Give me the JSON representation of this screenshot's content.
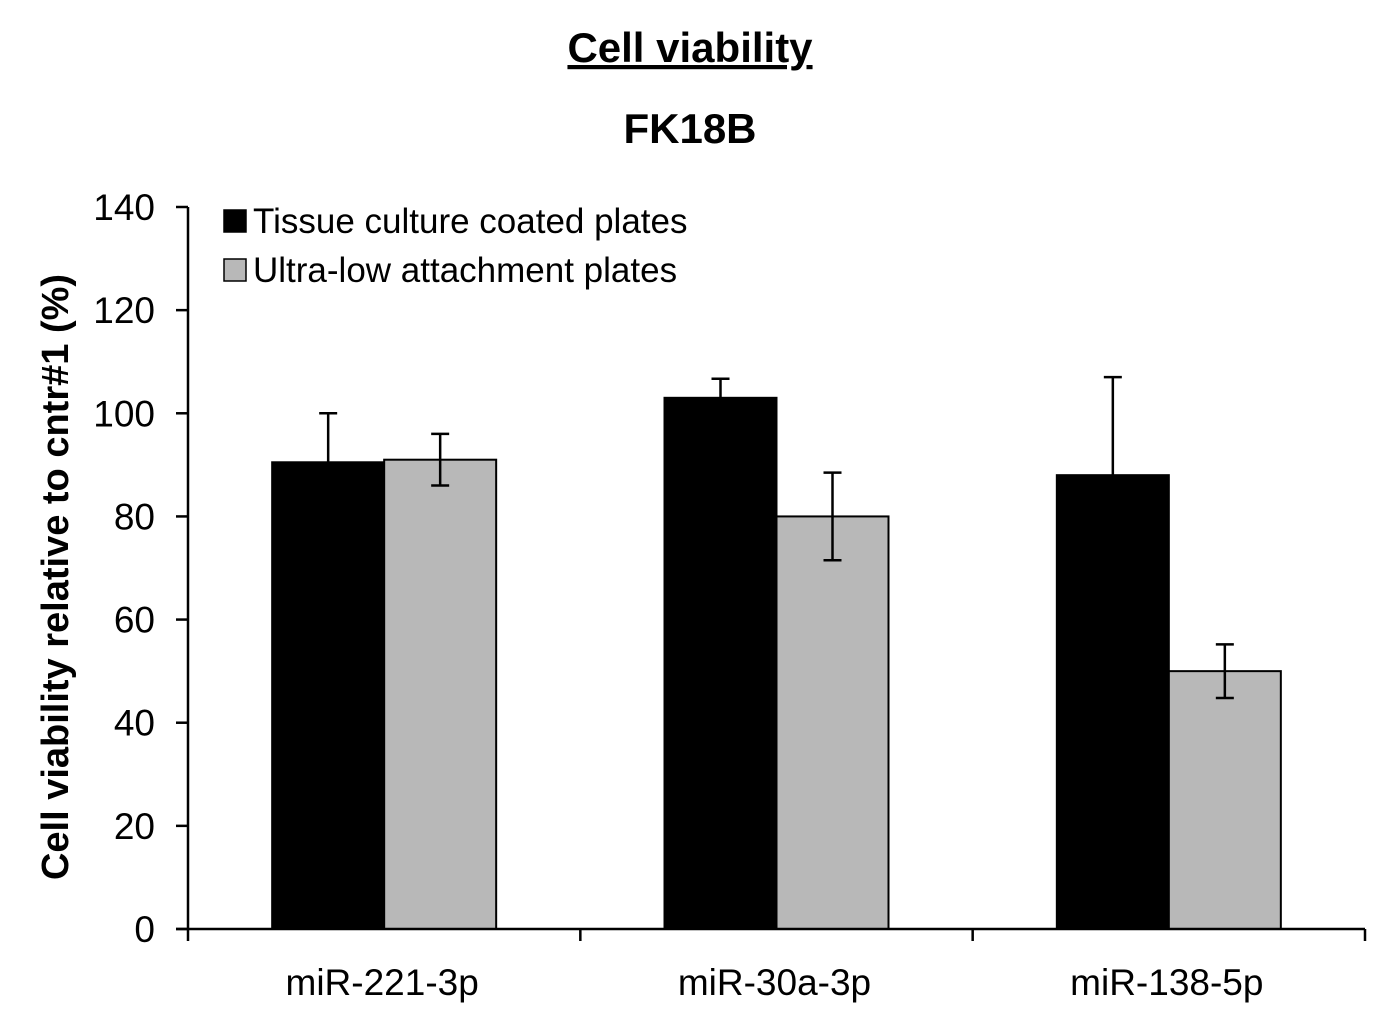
{
  "chart_data": {
    "type": "bar",
    "title": "Cell viability",
    "subtitle": "FK18B",
    "xlabel": "",
    "ylabel": "Cell viability relative to cntr#1 (%)",
    "ylim": [
      0,
      140
    ],
    "yticks": [
      0,
      20,
      40,
      60,
      80,
      100,
      120,
      140
    ],
    "ytick_labels": [
      "0",
      "20",
      "40",
      "60",
      "80",
      "100",
      "120",
      "140"
    ],
    "categories": [
      "miR-221-3p",
      "miR-30a-3p",
      "miR-138-5p"
    ],
    "series": [
      {
        "name": "Tissue culture coated plates",
        "color": "#000000",
        "values": [
          90.5,
          103,
          88
        ],
        "errors": [
          9.5,
          3.7,
          19
        ]
      },
      {
        "name": "Ultra-low attachment plates",
        "color": "#b8b8b8",
        "values": [
          91,
          80,
          50
        ],
        "errors": [
          5,
          8.5,
          5.2
        ]
      }
    ],
    "error_bars": "upper-and-lower",
    "grid": false,
    "legend_position": "top-left"
  }
}
